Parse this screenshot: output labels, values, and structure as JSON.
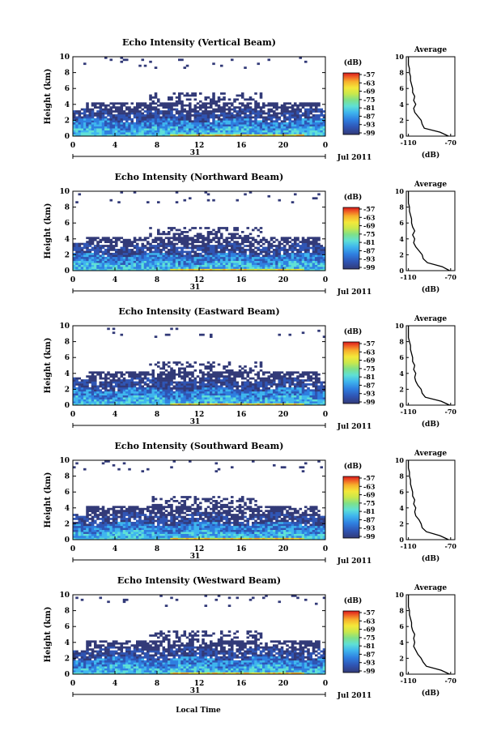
{
  "colors": {
    "colorbar": [
      "#323a78",
      "#2f55b4",
      "#2f7fe0",
      "#3fb6ee",
      "#5fe0d6",
      "#7ee08a",
      "#c8e84c",
      "#f4e83a",
      "#f7b02c",
      "#ef5a24",
      "#d7191c"
    ],
    "background": "#ffffff"
  },
  "shared": {
    "x_label": "Local Time",
    "date_label": "Jul 2011",
    "day_label": "31",
    "avg_title": "Average",
    "avg_unit": "(dB)",
    "cb_unit": "(dB)",
    "y_label": "Height (km)"
  },
  "chart_data": [
    {
      "type": "heatmap",
      "title": "Echo Intensity (Vertical Beam)",
      "ylabel": "Height (km)",
      "xlabel": "Local Time",
      "x_ticks": [
        "0",
        "4",
        "8",
        "12",
        "16",
        "20",
        "0"
      ],
      "y_ticks": [
        "0",
        "2",
        "4",
        "6",
        "8",
        "10"
      ],
      "xlim": [
        0,
        24
      ],
      "ylim": [
        0,
        10
      ],
      "colorbar_ticks": [
        "-57",
        "-63",
        "-69",
        "-75",
        "-81",
        "-87",
        "-93",
        "-99"
      ],
      "average": {
        "x_ticks": [
          "-110",
          "-70"
        ],
        "xlim": [
          -112,
          -66
        ],
        "height": [
          0,
          0.5,
          1,
          1.5,
          2,
          2.5,
          3,
          3.5,
          4,
          4.5,
          5,
          5.5,
          6,
          6.5,
          7,
          7.5,
          8,
          8.5,
          9,
          9.5,
          10
        ],
        "value": [
          -72,
          -80,
          -95,
          -97,
          -98,
          -101,
          -104,
          -105,
          -103,
          -105,
          -104,
          -106,
          -106,
          -107,
          -108,
          -108,
          -109,
          -109,
          -110,
          -110,
          -110
        ]
      }
    },
    {
      "type": "heatmap",
      "title": "Echo Intensity (Northward Beam)",
      "ylabel": "Height (km)",
      "xlabel": "Local Time",
      "x_ticks": [
        "0",
        "4",
        "8",
        "12",
        "16",
        "20",
        "0"
      ],
      "y_ticks": [
        "0",
        "2",
        "4",
        "6",
        "8",
        "10"
      ],
      "xlim": [
        0,
        24
      ],
      "ylim": [
        0,
        10
      ],
      "colorbar_ticks": [
        "-57",
        "-63",
        "-69",
        "-75",
        "-81",
        "-87",
        "-93",
        "-99"
      ],
      "average": {
        "x_ticks": [
          "-110",
          "-70"
        ],
        "xlim": [
          -112,
          -66
        ],
        "height": [
          0,
          0.5,
          1,
          1.5,
          2,
          2.5,
          3,
          3.5,
          4,
          4.5,
          5,
          5.5,
          6,
          6.5,
          7,
          7.5,
          8,
          8.5,
          9,
          9.5,
          10
        ],
        "value": [
          -71,
          -78,
          -92,
          -96,
          -97,
          -100,
          -103,
          -105,
          -104,
          -106,
          -104,
          -106,
          -107,
          -107,
          -108,
          -109,
          -109,
          -110,
          -110,
          -110,
          -110
        ]
      }
    },
    {
      "type": "heatmap",
      "title": "Echo Intensity (Eastward Beam)",
      "ylabel": "Height (km)",
      "xlabel": "Local Time",
      "x_ticks": [
        "0",
        "4",
        "8",
        "12",
        "16",
        "20",
        "0"
      ],
      "y_ticks": [
        "0",
        "2",
        "4",
        "6",
        "8",
        "10"
      ],
      "xlim": [
        0,
        24
      ],
      "ylim": [
        0,
        10
      ],
      "colorbar_ticks": [
        "-57",
        "-63",
        "-69",
        "-75",
        "-81",
        "-87",
        "-93",
        "-99"
      ],
      "average": {
        "x_ticks": [
          "-110",
          "-70"
        ],
        "xlim": [
          -112,
          -66
        ],
        "height": [
          0,
          0.5,
          1,
          1.5,
          2,
          2.5,
          3,
          3.5,
          4,
          4.5,
          5,
          5.5,
          6,
          6.5,
          7,
          7.5,
          8,
          8.5,
          9,
          9.5,
          10
        ],
        "value": [
          -71,
          -79,
          -94,
          -97,
          -98,
          -101,
          -103,
          -104,
          -103,
          -105,
          -104,
          -106,
          -106,
          -107,
          -108,
          -108,
          -109,
          -110,
          -110,
          -110,
          -110
        ]
      }
    },
    {
      "type": "heatmap",
      "title": "Echo Intensity (Southward Beam)",
      "ylabel": "Height (km)",
      "xlabel": "Local Time",
      "x_ticks": [
        "0",
        "4",
        "8",
        "12",
        "16",
        "20",
        "0"
      ],
      "y_ticks": [
        "0",
        "2",
        "4",
        "6",
        "8",
        "10"
      ],
      "xlim": [
        0,
        24
      ],
      "ylim": [
        0,
        10
      ],
      "colorbar_ticks": [
        "-57",
        "-63",
        "-69",
        "-75",
        "-81",
        "-87",
        "-93",
        "-99"
      ],
      "average": {
        "x_ticks": [
          "-110",
          "-70"
        ],
        "xlim": [
          -112,
          -66
        ],
        "height": [
          0,
          0.5,
          1,
          1.5,
          2,
          2.5,
          3,
          3.5,
          4,
          4.5,
          5,
          5.5,
          6,
          6.5,
          7,
          7.5,
          8,
          8.5,
          9,
          9.5,
          10
        ],
        "value": [
          -72,
          -80,
          -93,
          -97,
          -98,
          -100,
          -103,
          -104,
          -103,
          -105,
          -104,
          -106,
          -106,
          -107,
          -108,
          -108,
          -109,
          -109,
          -110,
          -110,
          -110
        ]
      }
    },
    {
      "type": "heatmap",
      "title": "Echo Intensity (Westward Beam)",
      "ylabel": "Height (km)",
      "xlabel": "Local Time",
      "x_ticks": [
        "0",
        "4",
        "8",
        "12",
        "16",
        "20",
        "0"
      ],
      "y_ticks": [
        "0",
        "2",
        "4",
        "6",
        "8",
        "10"
      ],
      "xlim": [
        0,
        24
      ],
      "ylim": [
        0,
        10
      ],
      "colorbar_ticks": [
        "-57",
        "-63",
        "-69",
        "-75",
        "-81",
        "-87",
        "-93",
        "-99"
      ],
      "average": {
        "x_ticks": [
          "-110",
          "-70"
        ],
        "xlim": [
          -112,
          -66
        ],
        "height": [
          0,
          0.5,
          1,
          1.5,
          2,
          2.5,
          3,
          3.5,
          4,
          4.5,
          5,
          5.5,
          6,
          6.5,
          7,
          7.5,
          8,
          8.5,
          9,
          9.5,
          10
        ],
        "value": [
          -71,
          -79,
          -93,
          -96,
          -98,
          -101,
          -103,
          -105,
          -104,
          -105,
          -104,
          -106,
          -107,
          -107,
          -108,
          -109,
          -109,
          -110,
          -110,
          -110,
          -110
        ]
      }
    }
  ]
}
